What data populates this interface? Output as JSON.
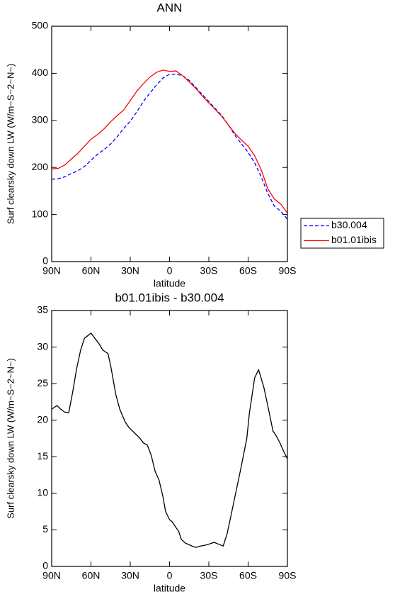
{
  "chart_data": [
    {
      "type": "line",
      "title": "ANN",
      "xlabel": "latitude",
      "ylabel": "Surf clearsky down LW (W/m~S~2~N~)",
      "x": [
        90,
        85,
        80,
        75,
        70,
        65,
        60,
        55,
        50,
        45,
        40,
        35,
        30,
        25,
        20,
        15,
        10,
        5,
        0,
        -5,
        -10,
        -15,
        -20,
        -25,
        -30,
        -35,
        -40,
        -45,
        -50,
        -55,
        -60,
        -65,
        -70,
        -75,
        -80,
        -85,
        -90
      ],
      "series": [
        {
          "name": "b30.004",
          "color": "#0000ff",
          "style": "dashed",
          "values": [
            175,
            176,
            180,
            187,
            193,
            202,
            215,
            228,
            238,
            250,
            265,
            283,
            298,
            318,
            340,
            358,
            375,
            390,
            398,
            398,
            395,
            385,
            370,
            355,
            340,
            325,
            310,
            290,
            268,
            250,
            232,
            210,
            180,
            145,
            118,
            107,
            90
          ]
        },
        {
          "name": "b01.01ibis",
          "color": "#ff0000",
          "style": "solid",
          "values": [
            197,
            198,
            205,
            218,
            230,
            245,
            260,
            270,
            282,
            297,
            310,
            322,
            342,
            362,
            378,
            392,
            402,
            407,
            404,
            405,
            395,
            382,
            368,
            352,
            337,
            323,
            308,
            290,
            272,
            258,
            245,
            225,
            195,
            155,
            133,
            122,
            103
          ]
        }
      ],
      "xlim": [
        90,
        -90
      ],
      "xticks": [
        {
          "value": 90,
          "label": "90N"
        },
        {
          "value": 60,
          "label": "60N"
        },
        {
          "value": 30,
          "label": "30N"
        },
        0,
        {
          "value": -30,
          "label": "30S"
        },
        {
          "value": -60,
          "label": "60S"
        },
        {
          "value": -90,
          "label": "90S"
        }
      ],
      "ylim": [
        0,
        500
      ],
      "yticks": [
        0,
        100,
        200,
        300,
        400,
        500
      ],
      "legend": "right"
    },
    {
      "type": "line",
      "title": "b01.01ibis - b30.004",
      "xlabel": "latitude",
      "ylabel": "Surf clearsky down LW (W/m~S~2~N~)",
      "x": [
        90,
        86,
        83,
        80,
        77,
        74,
        71,
        68,
        65,
        60,
        57,
        54,
        51,
        47,
        45,
        41,
        38,
        34,
        31,
        27,
        23,
        20,
        17,
        14,
        11,
        8,
        5,
        3,
        0,
        -2,
        -5,
        -7,
        -9,
        -12,
        -17,
        -20,
        -24,
        -27,
        -31,
        -34,
        -38,
        -41,
        -44,
        -47,
        -50,
        -54,
        -59,
        -61,
        -65,
        -68,
        -72,
        -75,
        -79,
        -81,
        -84,
        -87,
        -90
      ],
      "values": [
        21.5,
        22,
        21.5,
        21.1,
        21,
        23.8,
        27,
        29.5,
        31.2,
        31.9,
        31.2,
        30.5,
        29.6,
        29.1,
        27.5,
        23.5,
        21.5,
        19.8,
        19,
        18.3,
        17.6,
        16.9,
        16.6,
        15.2,
        13,
        11.8,
        9.5,
        7.5,
        6.4,
        6.1,
        5.3,
        4.8,
        3.7,
        3.2,
        2.8,
        2.6,
        2.8,
        2.9,
        3.1,
        3.3,
        3.0,
        2.8,
        4.5,
        7,
        9.6,
        13,
        17.5,
        21,
        25.8,
        26.9,
        24.5,
        22,
        18.5,
        18,
        17,
        15.8,
        14.7
      ],
      "color": "#000000",
      "xlim": [
        90,
        -90
      ],
      "xticks": [
        {
          "value": 90,
          "label": "90N"
        },
        {
          "value": 60,
          "label": "60N"
        },
        {
          "value": 30,
          "label": "30N"
        },
        0,
        {
          "value": -30,
          "label": "30S"
        },
        {
          "value": -60,
          "label": "60S"
        },
        {
          "value": -90,
          "label": "90S"
        }
      ],
      "ylim": [
        0,
        35
      ],
      "yticks": [
        0,
        5,
        10,
        15,
        20,
        25,
        30,
        35
      ]
    }
  ]
}
